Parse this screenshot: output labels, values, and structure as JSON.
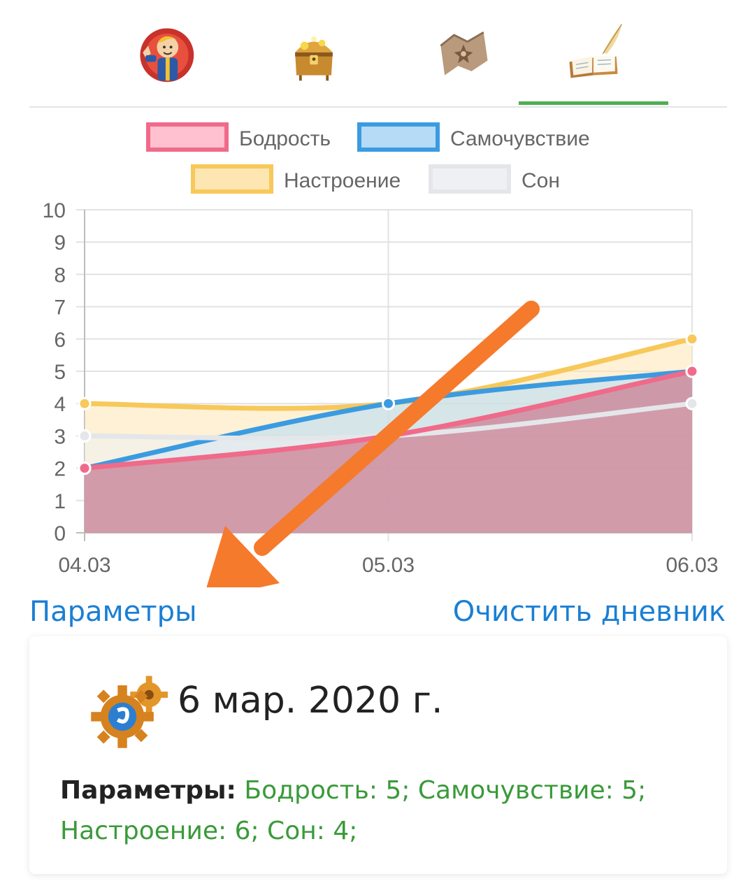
{
  "tabs": [
    {
      "name": "vault-boy-icon",
      "active": false
    },
    {
      "name": "treasure-chest-icon",
      "active": false
    },
    {
      "name": "map-scroll-icon",
      "active": false
    },
    {
      "name": "diary-book-icon",
      "active": true
    }
  ],
  "chart_data": {
    "type": "area",
    "categories": [
      "04.03",
      "05.03",
      "06.03"
    ],
    "ylim": [
      0,
      10
    ],
    "yticks": [
      "0",
      "1",
      "2",
      "3",
      "4",
      "5",
      "6",
      "7",
      "8",
      "9",
      "10"
    ],
    "grid": true,
    "legend": "top-center",
    "series": [
      {
        "name": "Бодрость",
        "values": [
          2,
          3,
          5
        ],
        "color": "#f06a8a",
        "fill": "#ffc0cf"
      },
      {
        "name": "Самочувствие",
        "values": [
          2,
          4,
          5
        ],
        "color": "#3b9be0",
        "fill": "#b5dbf7"
      },
      {
        "name": "Настроение",
        "values": [
          4,
          4,
          6
        ],
        "color": "#f7c85a",
        "fill": "#fde6b2"
      },
      {
        "name": "Сон",
        "values": [
          3,
          3,
          4
        ],
        "color": "#e4e6ea",
        "fill": "#eef0f3"
      }
    ]
  },
  "links": {
    "params": "Параметры",
    "clear": "Очистить дневник"
  },
  "entry": {
    "date": "6 мар. 2020 г.",
    "params_label": "Параметры:",
    "params_value": "Бодрость: 5; Самочувствие: 5; Настроение: 6; Сон: 4;"
  },
  "colors": {
    "accent": "#4caf50",
    "link": "#1a7fd4",
    "arrow": "#f57a2c",
    "params_text": "#3a9a3a"
  }
}
